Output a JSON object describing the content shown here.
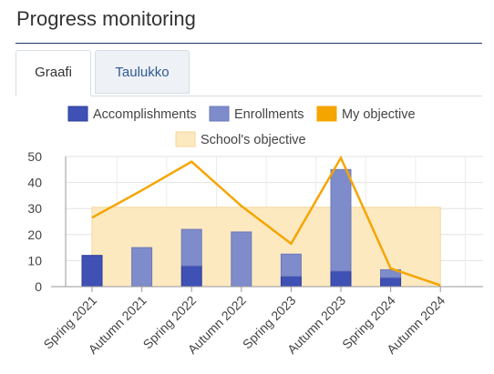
{
  "page": {
    "title": "Progress monitoring"
  },
  "tabs": [
    {
      "label": "Graafi",
      "active": true
    },
    {
      "label": "Taulukko",
      "active": false
    }
  ],
  "chart_data": {
    "type": "bar",
    "categories": [
      "Spring 2021",
      "Autumn 2021",
      "Spring 2022",
      "Autumn 2022",
      "Spring 2023",
      "Autumn 2023",
      "Spring 2024",
      "Autumn 2024"
    ],
    "ylim": [
      0,
      50
    ],
    "yticks": [
      0,
      10,
      20,
      30,
      40,
      50
    ],
    "grid": true,
    "legend_position": "top",
    "series": [
      {
        "name": "Accomplishments",
        "kind": "bar",
        "stacked": true,
        "color": "#3f51b5",
        "values": [
          12,
          0,
          8,
          0,
          4,
          6,
          3.5,
          0
        ]
      },
      {
        "name": "Enrollments",
        "kind": "bar",
        "stacked": true,
        "color": "#7f8ccb",
        "values": [
          0,
          15,
          14,
          21,
          8.5,
          39,
          3,
          0
        ]
      },
      {
        "name": "My objective",
        "kind": "line",
        "color": "#f5a500",
        "values": [
          26.5,
          37,
          48,
          31,
          16.5,
          49.5,
          7,
          0.5
        ]
      },
      {
        "name": "School's objective",
        "kind": "band",
        "color": "#fde9c0",
        "value": 30.5,
        "from_category": "Spring 2021",
        "to_category": "Autumn 2024"
      }
    ]
  }
}
